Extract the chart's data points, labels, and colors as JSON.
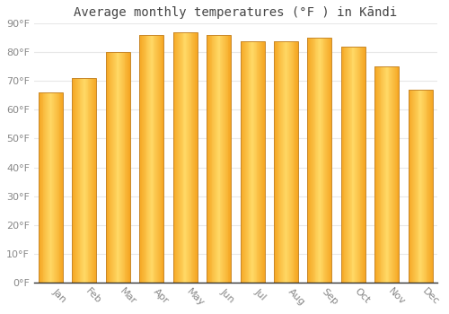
{
  "title": "Average monthly temperatures (°F ) in Kāndi",
  "months": [
    "Jan",
    "Feb",
    "Mar",
    "Apr",
    "May",
    "Jun",
    "Jul",
    "Aug",
    "Sep",
    "Oct",
    "Nov",
    "Dec"
  ],
  "values": [
    66,
    71,
    80,
    86,
    87,
    86,
    84,
    84,
    85,
    82,
    75,
    67
  ],
  "bar_color_center": "#FFD966",
  "bar_color_edge": "#F5A623",
  "bar_outline_color": "#C8882A",
  "background_color": "#FFFFFF",
  "plot_bg_color": "#FFFFFF",
  "grid_color": "#E8E8E8",
  "axis_color": "#333333",
  "ylim": [
    0,
    90
  ],
  "ytick_step": 10,
  "title_fontsize": 10,
  "tick_fontsize": 8,
  "tick_label_color": "#888888",
  "title_color": "#444444",
  "xticklabel_rotation": -45
}
